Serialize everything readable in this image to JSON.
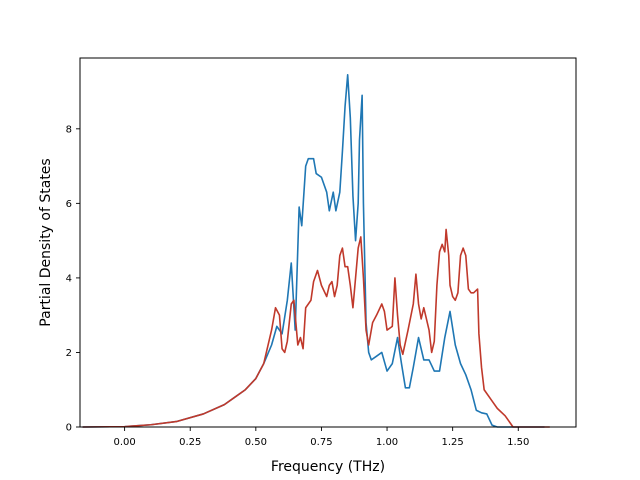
{
  "chart_data": {
    "type": "line",
    "title": "",
    "xlabel": "Frequency (THz)",
    "ylabel": "Partial Density of States",
    "xlim": [
      -0.17,
      1.72
    ],
    "ylim": [
      0,
      9.9
    ],
    "xticks": [
      0.0,
      0.25,
      0.5,
      0.75,
      1.0,
      1.25,
      1.5
    ],
    "xtick_labels": [
      "0.00",
      "0.25",
      "0.50",
      "0.75",
      "1.00",
      "1.25",
      "1.50"
    ],
    "yticks": [
      0,
      2,
      4,
      6,
      8
    ],
    "ytick_labels": [
      "0",
      "2",
      "4",
      "6",
      "8"
    ],
    "grid": false,
    "legend": "none",
    "series": [
      {
        "color": "#1f77b4",
        "points": [
          [
            -0.16,
            0.0
          ],
          [
            0.0,
            0.01
          ],
          [
            0.1,
            0.06
          ],
          [
            0.2,
            0.15
          ],
          [
            0.3,
            0.35
          ],
          [
            0.38,
            0.6
          ],
          [
            0.42,
            0.8
          ],
          [
            0.46,
            1.0
          ],
          [
            0.5,
            1.3
          ],
          [
            0.53,
            1.7
          ],
          [
            0.56,
            2.2
          ],
          [
            0.58,
            2.7
          ],
          [
            0.6,
            2.5
          ],
          [
            0.62,
            3.4
          ],
          [
            0.635,
            4.4
          ],
          [
            0.65,
            2.6
          ],
          [
            0.665,
            5.9
          ],
          [
            0.675,
            5.4
          ],
          [
            0.69,
            7.0
          ],
          [
            0.7,
            7.2
          ],
          [
            0.72,
            7.2
          ],
          [
            0.73,
            6.8
          ],
          [
            0.75,
            6.7
          ],
          [
            0.77,
            6.3
          ],
          [
            0.78,
            5.8
          ],
          [
            0.795,
            6.3
          ],
          [
            0.805,
            5.8
          ],
          [
            0.82,
            6.3
          ],
          [
            0.83,
            7.4
          ],
          [
            0.84,
            8.6
          ],
          [
            0.85,
            9.45
          ],
          [
            0.86,
            8.3
          ],
          [
            0.87,
            6.2
          ],
          [
            0.88,
            5.0
          ],
          [
            0.89,
            6.0
          ],
          [
            0.895,
            7.7
          ],
          [
            0.905,
            8.9
          ],
          [
            0.91,
            6.0
          ],
          [
            0.92,
            2.8
          ],
          [
            0.93,
            2.0
          ],
          [
            0.94,
            1.8
          ],
          [
            0.96,
            1.9
          ],
          [
            0.98,
            2.0
          ],
          [
            1.0,
            1.5
          ],
          [
            1.02,
            1.7
          ],
          [
            1.04,
            2.4
          ],
          [
            1.055,
            1.7
          ],
          [
            1.07,
            1.05
          ],
          [
            1.085,
            1.05
          ],
          [
            1.1,
            1.6
          ],
          [
            1.12,
            2.4
          ],
          [
            1.14,
            1.8
          ],
          [
            1.16,
            1.8
          ],
          [
            1.18,
            1.5
          ],
          [
            1.2,
            1.5
          ],
          [
            1.22,
            2.4
          ],
          [
            1.24,
            3.1
          ],
          [
            1.26,
            2.2
          ],
          [
            1.28,
            1.7
          ],
          [
            1.3,
            1.4
          ],
          [
            1.32,
            1.0
          ],
          [
            1.34,
            0.45
          ],
          [
            1.36,
            0.38
          ],
          [
            1.38,
            0.35
          ],
          [
            1.4,
            0.05
          ],
          [
            1.42,
            0.0
          ],
          [
            1.6,
            0.0
          ]
        ]
      },
      {
        "color": "#c0392b",
        "points": [
          [
            -0.16,
            0.0
          ],
          [
            0.0,
            0.01
          ],
          [
            0.1,
            0.06
          ],
          [
            0.2,
            0.15
          ],
          [
            0.3,
            0.35
          ],
          [
            0.38,
            0.6
          ],
          [
            0.42,
            0.8
          ],
          [
            0.46,
            1.0
          ],
          [
            0.5,
            1.3
          ],
          [
            0.53,
            1.7
          ],
          [
            0.56,
            2.6
          ],
          [
            0.575,
            3.2
          ],
          [
            0.59,
            3.0
          ],
          [
            0.6,
            2.1
          ],
          [
            0.61,
            2.0
          ],
          [
            0.62,
            2.3
          ],
          [
            0.635,
            3.3
          ],
          [
            0.645,
            3.4
          ],
          [
            0.66,
            2.2
          ],
          [
            0.67,
            2.4
          ],
          [
            0.68,
            2.1
          ],
          [
            0.69,
            3.2
          ],
          [
            0.7,
            3.3
          ],
          [
            0.71,
            3.4
          ],
          [
            0.72,
            3.9
          ],
          [
            0.735,
            4.2
          ],
          [
            0.75,
            3.8
          ],
          [
            0.77,
            3.5
          ],
          [
            0.78,
            3.8
          ],
          [
            0.79,
            3.9
          ],
          [
            0.8,
            3.5
          ],
          [
            0.81,
            3.8
          ],
          [
            0.82,
            4.6
          ],
          [
            0.83,
            4.8
          ],
          [
            0.84,
            4.3
          ],
          [
            0.85,
            4.3
          ],
          [
            0.86,
            3.8
          ],
          [
            0.87,
            3.2
          ],
          [
            0.88,
            4.0
          ],
          [
            0.89,
            4.8
          ],
          [
            0.9,
            5.1
          ],
          [
            0.91,
            4.0
          ],
          [
            0.92,
            2.6
          ],
          [
            0.93,
            2.2
          ],
          [
            0.945,
            2.8
          ],
          [
            0.96,
            3.0
          ],
          [
            0.98,
            3.3
          ],
          [
            0.99,
            3.1
          ],
          [
            1.0,
            2.6
          ],
          [
            1.02,
            2.7
          ],
          [
            1.03,
            4.0
          ],
          [
            1.04,
            3.0
          ],
          [
            1.05,
            2.2
          ],
          [
            1.06,
            1.95
          ],
          [
            1.08,
            2.6
          ],
          [
            1.1,
            3.3
          ],
          [
            1.11,
            4.1
          ],
          [
            1.12,
            3.3
          ],
          [
            1.13,
            2.9
          ],
          [
            1.14,
            3.2
          ],
          [
            1.16,
            2.6
          ],
          [
            1.17,
            2.0
          ],
          [
            1.18,
            2.3
          ],
          [
            1.19,
            3.8
          ],
          [
            1.2,
            4.7
          ],
          [
            1.21,
            4.9
          ],
          [
            1.22,
            4.7
          ],
          [
            1.225,
            5.3
          ],
          [
            1.235,
            4.6
          ],
          [
            1.24,
            3.8
          ],
          [
            1.25,
            3.5
          ],
          [
            1.26,
            3.4
          ],
          [
            1.27,
            3.6
          ],
          [
            1.28,
            4.6
          ],
          [
            1.29,
            4.8
          ],
          [
            1.3,
            4.6
          ],
          [
            1.31,
            3.7
          ],
          [
            1.32,
            3.6
          ],
          [
            1.33,
            3.6
          ],
          [
            1.345,
            3.7
          ],
          [
            1.35,
            2.5
          ],
          [
            1.36,
            1.6
          ],
          [
            1.37,
            1.0
          ],
          [
            1.4,
            0.7
          ],
          [
            1.42,
            0.5
          ],
          [
            1.45,
            0.3
          ],
          [
            1.47,
            0.1
          ],
          [
            1.48,
            0.0
          ],
          [
            1.62,
            0.0
          ]
        ]
      }
    ]
  }
}
